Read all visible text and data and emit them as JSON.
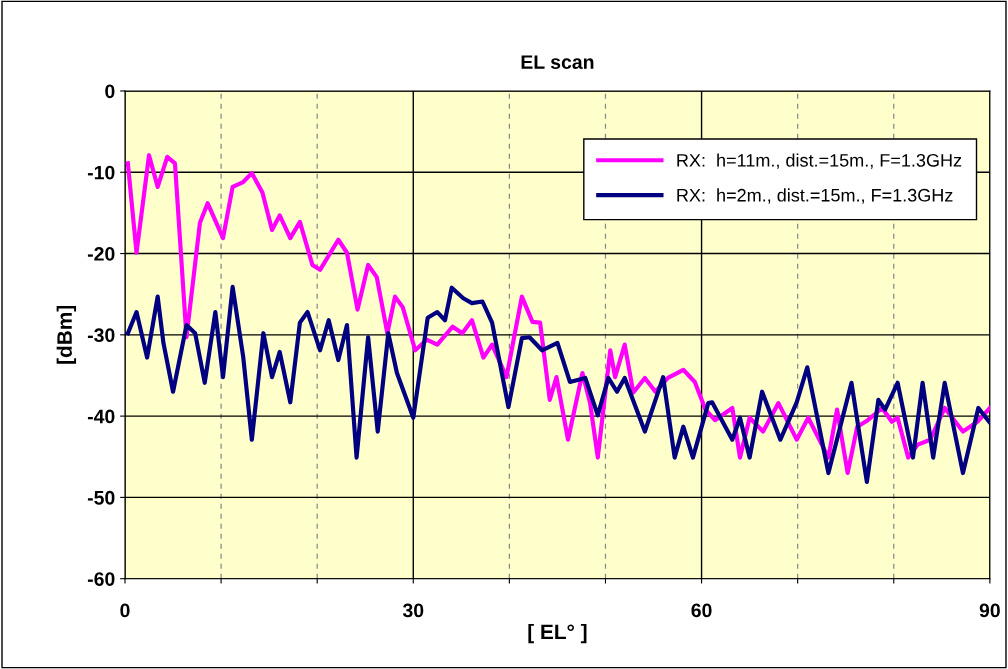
{
  "chart_data": {
    "type": "line",
    "title": "EL scan",
    "xlabel": "[ EL° ]",
    "ylabel": "[dBm]",
    "xlim": [
      0,
      90
    ],
    "ylim": [
      -60,
      0
    ],
    "xticks": [
      0,
      {
        "value": 10,
        "label": null
      },
      {
        "value": 20,
        "label": null
      },
      30,
      {
        "value": 40,
        "label": null
      },
      {
        "value": 50,
        "label": null
      },
      60,
      {
        "value": 70,
        "label": null
      },
      {
        "value": 80,
        "label": null
      },
      90
    ],
    "yticks": [
      -60,
      -50,
      -40,
      -30,
      -20,
      -10,
      0
    ],
    "grid": true,
    "legend": "top right",
    "marker": "none",
    "line_style": "solid",
    "series": [
      {
        "name": "RX:  h=11m., dist.=15m., F=1.3GHz",
        "color": "#ff00ff",
        "x": [
          0.3,
          1.2,
          2.5,
          3.4,
          4.4,
          5.2,
          6.4,
          7.8,
          8.6,
          10.2,
          11.2,
          12.3,
          13.2,
          14.3,
          15.3,
          16.1,
          17.2,
          18.2,
          19.5,
          20.3,
          22.2,
          23.1,
          24.2,
          25.3,
          26.2,
          27.3,
          28.1,
          28.9,
          30.2,
          31.4,
          32.5,
          34.1,
          35.1,
          36.1,
          37.3,
          38.2,
          39.7,
          41.3,
          42.4,
          43.2,
          44.2,
          44.9,
          46.1,
          47.6,
          48.4,
          49.2,
          50.5,
          51.0,
          52.0,
          52.9,
          54.1,
          55.2,
          56.5,
          58.1,
          59.3,
          60.4,
          61.4,
          63.2,
          64.0,
          65.0,
          66.4,
          68.0,
          69.9,
          71.1,
          73.2,
          74.1,
          75.2,
          76.2,
          77.3,
          78.8,
          79.8,
          80.4,
          81.5,
          82.5,
          83.8,
          85.3,
          87.2,
          88.7,
          90
        ],
        "values": [
          -8.9,
          -19.9,
          -7.9,
          -11.8,
          -8.1,
          -8.9,
          -30.3,
          -16.2,
          -13.8,
          -18.1,
          -11.8,
          -11.2,
          -10.1,
          -12.5,
          -17.1,
          -15.3,
          -18.1,
          -16.1,
          -21.4,
          -22.0,
          -18.3,
          -19.9,
          -26.9,
          -21.4,
          -22.9,
          -29.8,
          -25.3,
          -26.6,
          -31.9,
          -30.6,
          -31.2,
          -29.0,
          -29.8,
          -28.2,
          -32.8,
          -31.2,
          -35.2,
          -25.3,
          -28.4,
          -28.5,
          -38.0,
          -35.2,
          -42.9,
          -34.7,
          -38.4,
          -45.1,
          -31.9,
          -35.2,
          -31.2,
          -37.1,
          -35.3,
          -37.0,
          -35.3,
          -34.3,
          -35.8,
          -39.2,
          -40.5,
          -39.0,
          -45.1,
          -40.2,
          -41.9,
          -38.4,
          -42.9,
          -40.2,
          -45.1,
          -39.2,
          -47.0,
          -41.3,
          -40.5,
          -39.0,
          -40.7,
          -40.2,
          -45.1,
          -43.5,
          -42.9,
          -39.0,
          -41.9,
          -40.7,
          -39.0
        ]
      },
      {
        "name": "RX:  h=2m., dist.=15m., F=1.3GHz",
        "color": "#000080",
        "x": [
          0.3,
          1.2,
          2.3,
          3.4,
          4.0,
          5.0,
          6.4,
          7.3,
          8.3,
          9.4,
          10.2,
          11.2,
          12.3,
          13.2,
          14.4,
          15.3,
          16.1,
          17.2,
          18.2,
          19.0,
          20.3,
          21.2,
          22.2,
          23.1,
          24.1,
          25.3,
          26.3,
          27.4,
          28.3,
          30.0,
          31.5,
          32.5,
          33.3,
          34.0,
          35.2,
          36.1,
          37.2,
          38.2,
          39.9,
          41.3,
          42.1,
          43.4,
          45.0,
          46.3,
          47.9,
          49.2,
          50.3,
          51.2,
          52.0,
          54.1,
          56.0,
          57.2,
          58.1,
          59.1,
          60.7,
          61.1,
          63.2,
          64.0,
          65.0,
          66.3,
          68.2,
          69.9,
          71.0,
          73.2,
          75.6,
          77.2,
          78.4,
          79.1,
          80.4,
          82.0,
          83.0,
          84.1,
          85.3,
          87.2,
          88.8,
          90
        ],
        "values": [
          -29.8,
          -27.2,
          -32.8,
          -25.3,
          -31.0,
          -37.0,
          -28.8,
          -29.8,
          -35.9,
          -27.2,
          -35.2,
          -24.1,
          -32.7,
          -42.9,
          -29.8,
          -35.2,
          -32.1,
          -38.3,
          -28.5,
          -27.2,
          -31.9,
          -28.2,
          -33.1,
          -28.8,
          -45.1,
          -30.3,
          -41.9,
          -29.8,
          -34.7,
          -40.2,
          -27.9,
          -27.2,
          -28.2,
          -24.2,
          -25.5,
          -26.1,
          -25.9,
          -28.5,
          -38.9,
          -30.4,
          -30.3,
          -31.9,
          -31.0,
          -35.8,
          -35.3,
          -39.9,
          -35.3,
          -37.0,
          -35.3,
          -41.9,
          -35.2,
          -45.1,
          -41.3,
          -45.1,
          -38.4,
          -38.3,
          -42.9,
          -40.2,
          -45.1,
          -37.0,
          -42.9,
          -38.3,
          -34.0,
          -47.0,
          -35.9,
          -48.1,
          -38.0,
          -39.2,
          -35.9,
          -45.1,
          -35.9,
          -45.1,
          -35.9,
          -47.0,
          -39.0,
          -40.8
        ]
      }
    ]
  }
}
